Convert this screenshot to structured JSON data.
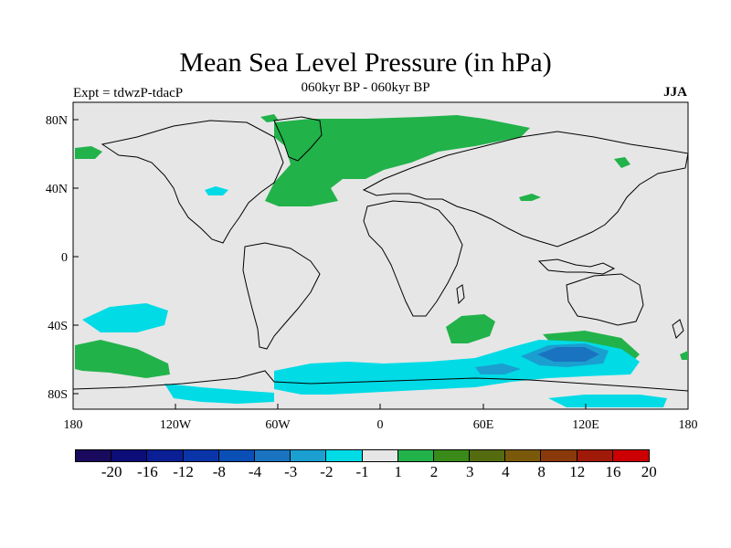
{
  "title": "Mean Sea Level Pressure (in hPa)",
  "subtitle": "060kyr BP - 060kyr BP",
  "experiment": "Expt = tdwzP-tdacP",
  "season": "JJA",
  "map": {
    "lat_labels": [
      "80N",
      "40N",
      "0",
      "40S",
      "80S"
    ],
    "lon_labels": [
      "180",
      "120W",
      "60W",
      "0",
      "60E",
      "120E",
      "180"
    ],
    "background_color": "#e6e6e6"
  },
  "colorbar": {
    "colors": [
      "#1a0a5e",
      "#0d0d7a",
      "#0a1f95",
      "#0a35a8",
      "#0a4fb5",
      "#1a73c0",
      "#1a9fd0",
      "#00dbe6",
      "#e6e6e6",
      "#22b24a",
      "#3a8a1a",
      "#556b10",
      "#7a5a0a",
      "#8a3a0a",
      "#a01a0a",
      "#cc0000"
    ],
    "labels": [
      "-20",
      "-16",
      "-12",
      "-8",
      "-4",
      "-3",
      "-2",
      "-1",
      "1",
      "2",
      "3",
      "4",
      "8",
      "12",
      "16",
      "20"
    ]
  }
}
